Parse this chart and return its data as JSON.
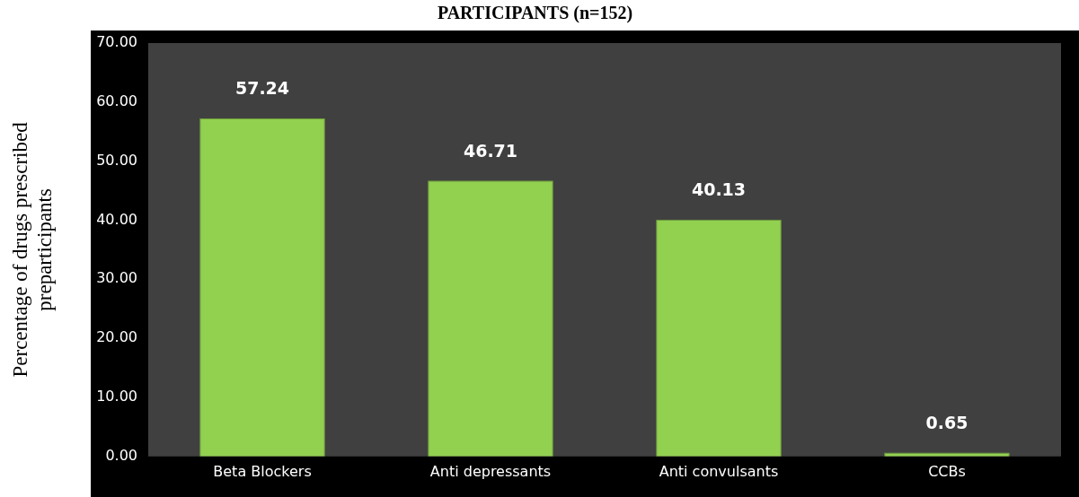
{
  "chart_data": {
    "type": "bar",
    "title": "PARTICIPANTS (n=152)",
    "ylabel": "Percentage of drugs prescribed\npreparticipants",
    "categories": [
      "Beta Blockers",
      "Anti depressants",
      "Anti convulsants",
      "CCBs"
    ],
    "values": [
      57.24,
      46.71,
      40.13,
      0.65
    ],
    "color": "#92d050",
    "ylim": [
      0,
      70
    ],
    "yticks": [
      {
        "value": 0,
        "label": "0.00"
      },
      {
        "value": 10,
        "label": "10.00"
      },
      {
        "value": 20,
        "label": "20.00"
      },
      {
        "value": 30,
        "label": "30.00"
      },
      {
        "value": 40,
        "label": "40.00"
      },
      {
        "value": 50,
        "label": "50.00"
      },
      {
        "value": 60,
        "label": "60.00"
      },
      {
        "value": 70,
        "label": "70.00"
      }
    ],
    "grid": false,
    "legend": false,
    "data_labels": true
  }
}
